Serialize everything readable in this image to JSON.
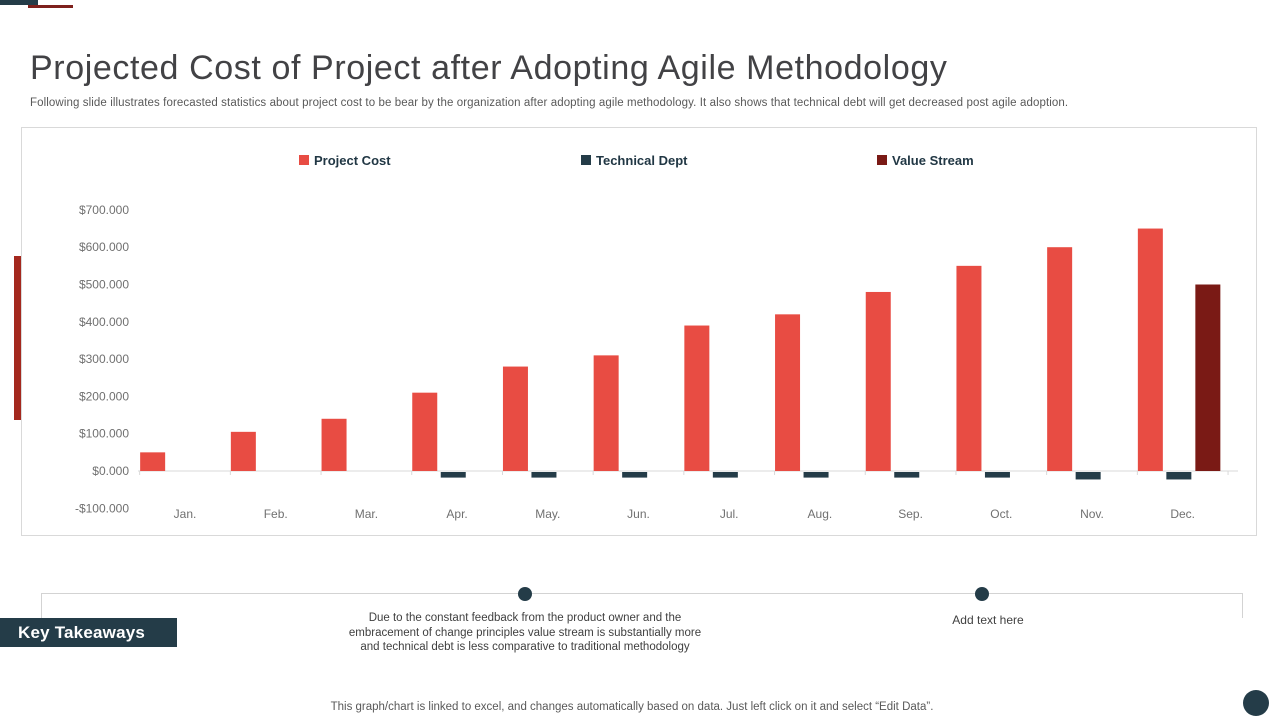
{
  "header": {
    "title": "Projected Cost of Project after Adopting Agile Methodology",
    "subtitle": "Following slide illustrates forecasted statistics about project cost to be bear by the organization after adopting agile methodology. It also shows that technical debt will get decreased post agile adoption."
  },
  "chart_data": {
    "type": "bar",
    "title": "",
    "xlabel": "",
    "ylabel": "",
    "categories": [
      "Jan.",
      "Feb.",
      "Mar.",
      "Apr.",
      "May.",
      "Jun.",
      "Jul.",
      "Aug.",
      "Sep.",
      "Oct.",
      "Nov.",
      "Dec."
    ],
    "series": [
      {
        "name": "Project Cost",
        "color": "#E84C43",
        "values": [
          50000,
          105000,
          140000,
          210000,
          280000,
          310000,
          390000,
          420000,
          480000,
          550000,
          600000,
          650000
        ]
      },
      {
        "name": "Technical Dept",
        "color": "#243C48",
        "values": [
          0,
          0,
          0,
          -15000,
          -15000,
          -15000,
          -15000,
          -15000,
          -15000,
          -15000,
          -20000,
          -20000
        ]
      },
      {
        "name": "Value Stream",
        "color": "#7A1A15",
        "values": [
          0,
          0,
          0,
          0,
          0,
          0,
          0,
          0,
          0,
          0,
          0,
          500000
        ]
      }
    ],
    "y_ticks": [
      {
        "label": "$700.000",
        "value": 700000
      },
      {
        "label": "$600.000",
        "value": 600000
      },
      {
        "label": "$500.000",
        "value": 500000
      },
      {
        "label": "$400.000",
        "value": 400000
      },
      {
        "label": "$300.000",
        "value": 300000
      },
      {
        "label": "$200.000",
        "value": 200000
      },
      {
        "label": "$100.000",
        "value": 100000
      },
      {
        "label": "$0.000",
        "value": 0
      },
      {
        "label": "-$100.000",
        "value": -100000
      }
    ],
    "ylim": [
      -100000,
      700000
    ],
    "legend_position": "top",
    "grid": "zero-baseline-only"
  },
  "takeaways": {
    "label": "Key Takeaways",
    "item1": "Due to the constant feedback from the product owner and the embracement of change principles value stream is substantially more and technical debt is less comparative to traditional methodology",
    "item2": "Add text here"
  },
  "footer": {
    "note": "This graph/chart is linked to excel, and changes automatically based on data. Just left click on it and select “Edit Data”."
  },
  "colors": {
    "navy": "#243C48",
    "project_cost_red": "#E84C43",
    "value_stream_maroon": "#7A1A15",
    "left_accent_red": "#A4281E",
    "top_line_red": "#7E201C",
    "axis_gray": "#D9D9D9"
  }
}
